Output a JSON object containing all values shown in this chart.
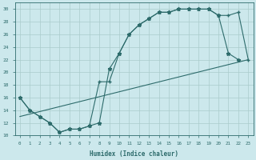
{
  "xlabel": "Humidex (Indice chaleur)",
  "bg_color": "#cce8ec",
  "grid_color": "#aacccc",
  "line_color": "#2d6b6b",
  "xlim": [
    -0.5,
    23.5
  ],
  "ylim": [
    10,
    31
  ],
  "yticks": [
    10,
    12,
    14,
    16,
    18,
    20,
    22,
    24,
    26,
    28,
    30
  ],
  "xticks": [
    0,
    1,
    2,
    3,
    4,
    5,
    6,
    7,
    8,
    9,
    10,
    11,
    12,
    13,
    14,
    15,
    16,
    17,
    18,
    19,
    20,
    21,
    22,
    23
  ],
  "line1_x": [
    0,
    1,
    2,
    3,
    4,
    5,
    6,
    7,
    8,
    9,
    10,
    11,
    12,
    13,
    14,
    15,
    16,
    17,
    18,
    19,
    20,
    21,
    22
  ],
  "line1_y": [
    16,
    14,
    13,
    12,
    10.5,
    11,
    11,
    11.5,
    12,
    20.5,
    23,
    26,
    27.5,
    28.5,
    29.5,
    29.5,
    30,
    30,
    30,
    30,
    29,
    23,
    22
  ],
  "line2_x": [
    0,
    1,
    2,
    3,
    4,
    5,
    6,
    7,
    8,
    9,
    10,
    11,
    12,
    13,
    14,
    15,
    16,
    17,
    18,
    19,
    20,
    21,
    22,
    23
  ],
  "line2_y": [
    16,
    14,
    13,
    12,
    10.5,
    11,
    11,
    11.5,
    18.5,
    18.5,
    23,
    26,
    27.5,
    28.5,
    29.5,
    29.5,
    30,
    30,
    30,
    30,
    29,
    29,
    29.5,
    22
  ],
  "line3_x": [
    0,
    23
  ],
  "line3_y": [
    13,
    22
  ]
}
